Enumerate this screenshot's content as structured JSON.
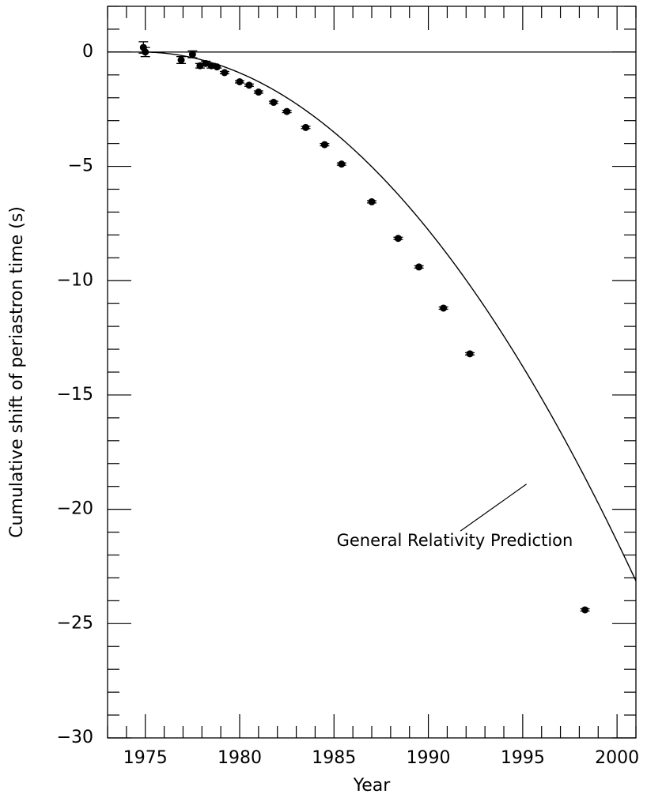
{
  "chart_data": {
    "type": "scatter",
    "title": "",
    "xlabel": "Year",
    "ylabel": "Cumulative shift of periastron time (s)",
    "xlim": [
      1973,
      2001
    ],
    "ylim": [
      -30,
      2
    ],
    "x_ticks": [
      {
        "value": 1975,
        "label": "1975"
      },
      {
        "value": 1980,
        "label": "1980"
      },
      {
        "value": 1985,
        "label": "1985"
      },
      {
        "value": 1990,
        "label": "1990"
      },
      {
        "value": 1995,
        "label": "1995"
      },
      {
        "value": 2000,
        "label": "2000"
      }
    ],
    "y_ticks": [
      {
        "value": 0,
        "label": "0"
      },
      {
        "value": -5,
        "label": "−5"
      },
      {
        "value": -10,
        "label": "−10"
      },
      {
        "value": -15,
        "label": "−15"
      },
      {
        "value": -20,
        "label": "−20"
      },
      {
        "value": -25,
        "label": "−25"
      },
      {
        "value": -30,
        "label": "−30"
      }
    ],
    "x_minor_step": 1,
    "y_minor_step": 1,
    "reference_line": {
      "y": 0
    },
    "series": [
      {
        "kind": "points",
        "points": [
          {
            "x": 1974.9,
            "y": 0.2,
            "err": 0.25
          },
          {
            "x": 1975.0,
            "y": 0.0,
            "err": 0.2
          },
          {
            "x": 1976.9,
            "y": -0.35,
            "err": 0.15
          },
          {
            "x": 1977.5,
            "y": -0.1,
            "err": 0.15
          },
          {
            "x": 1977.9,
            "y": -0.6,
            "err": 0.1
          },
          {
            "x": 1978.2,
            "y": -0.5,
            "err": 0.1
          },
          {
            "x": 1978.5,
            "y": -0.6,
            "err": 0.1
          },
          {
            "x": 1978.8,
            "y": -0.65,
            "err": 0.05
          },
          {
            "x": 1979.2,
            "y": -0.9,
            "err": 0.05
          },
          {
            "x": 1980.0,
            "y": -1.3,
            "err": 0.05
          },
          {
            "x": 1980.5,
            "y": -1.45,
            "err": 0.05
          },
          {
            "x": 1981.0,
            "y": -1.75,
            "err": 0.05
          },
          {
            "x": 1981.8,
            "y": -2.2,
            "err": 0.05
          },
          {
            "x": 1982.5,
            "y": -2.6,
            "err": 0.05
          },
          {
            "x": 1983.5,
            "y": -3.3,
            "err": 0.05
          },
          {
            "x": 1984.5,
            "y": -4.05,
            "err": 0.05
          },
          {
            "x": 1985.4,
            "y": -4.9,
            "err": 0.05
          },
          {
            "x": 1987.0,
            "y": -6.55,
            "err": 0.05
          },
          {
            "x": 1988.4,
            "y": -8.15,
            "err": 0.05
          },
          {
            "x": 1989.5,
            "y": -9.4,
            "err": 0.05
          },
          {
            "x": 1990.8,
            "y": -11.2,
            "err": 0.05
          },
          {
            "x": 1992.2,
            "y": -13.2,
            "err": 0.05
          },
          {
            "x": 1998.3,
            "y": -24.4,
            "err": 0.05
          }
        ]
      },
      {
        "kind": "curve",
        "function": "quadratic",
        "t0": 1974.8,
        "coefficient": -0.0337,
        "x_range": [
          1974.8,
          2001
        ]
      }
    ],
    "annotation": {
      "text": "General Relativity Prediction",
      "text_anchor": {
        "x": 1991.4,
        "y": -21.4
      },
      "pointer_from": {
        "x": 1991.7,
        "y": -20.95
      },
      "pointer_to": {
        "x": 1995.2,
        "y": -18.9
      }
    },
    "grid": false,
    "legend": "none"
  }
}
